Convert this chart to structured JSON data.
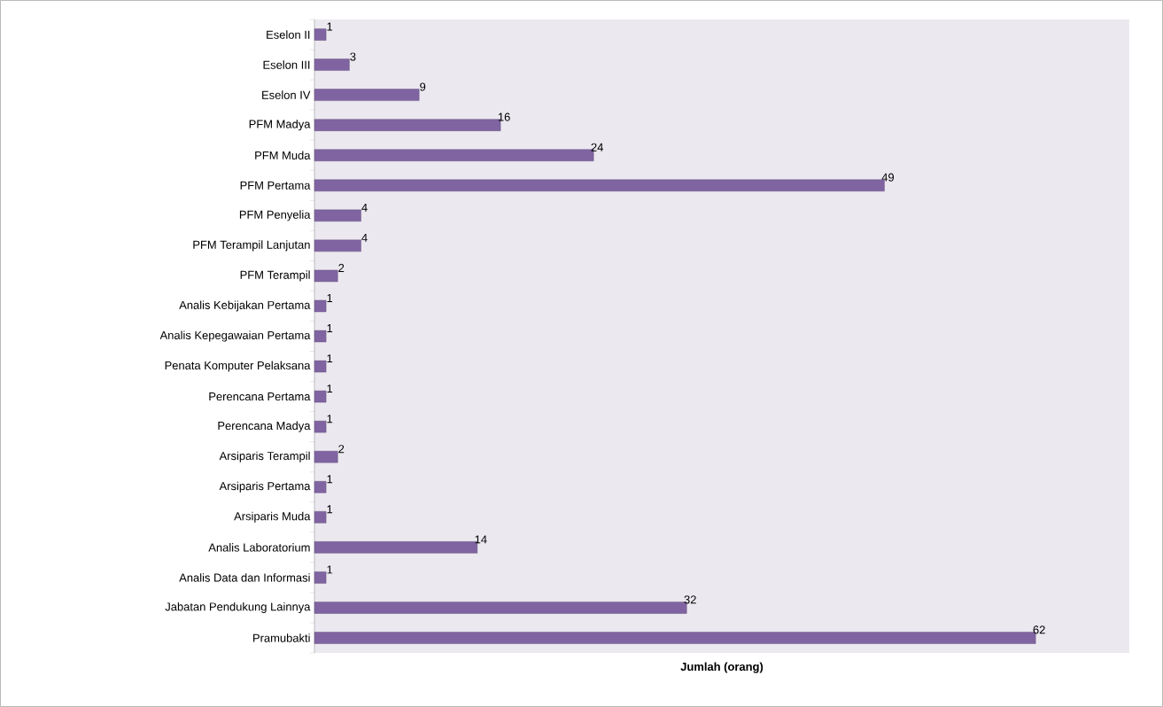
{
  "chart_data": {
    "type": "bar",
    "orientation": "horizontal",
    "xlabel": "Jumlah (orang)",
    "categories": [
      "Eselon II",
      "Eselon III",
      "Eselon IV",
      "PFM Madya",
      "PFM Muda",
      "PFM Pertama",
      "PFM Penyelia",
      "PFM Terampil Lanjutan",
      "PFM Terampil",
      "Analis Kebijakan Pertama",
      "Analis Kepegawaian Pertama",
      "Penata Komputer Pelaksana",
      "Perencana Pertama",
      "Perencana Madya",
      "Arsiparis Terampil",
      "Arsiparis Pertama",
      "Arsiparis Muda",
      "Analis Laboratorium",
      "Analis Data dan Informasi",
      "Jabatan Pendukung Lainnya",
      "Pramubakti"
    ],
    "values": [
      1,
      3,
      9,
      16,
      24,
      49,
      4,
      4,
      2,
      1,
      1,
      1,
      1,
      1,
      2,
      1,
      1,
      14,
      1,
      32,
      62
    ],
    "color": "#8064a2",
    "data_labels": true
  }
}
